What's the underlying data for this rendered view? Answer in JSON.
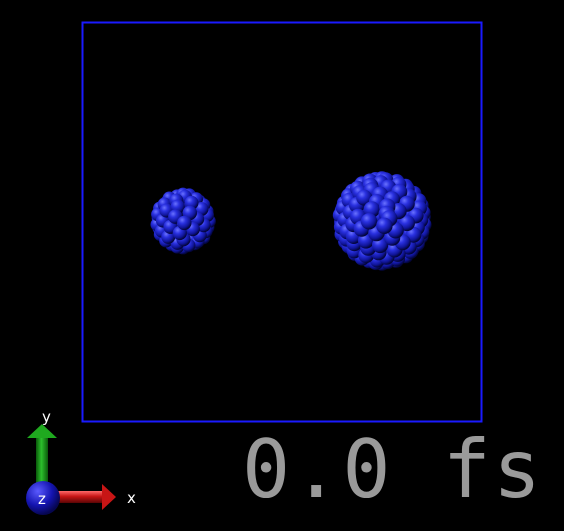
{
  "viewer": {
    "colors": {
      "background": "#000000",
      "box": "#1a1aff",
      "atom_light": "#4a52ff",
      "atom_mid": "#1f24c8",
      "atom_dark": "#050865",
      "axis_x": "#d01818",
      "axis_y": "#1fa91f",
      "axis_z": "#1616b8",
      "time_text": "#9a9a9a"
    },
    "axes": {
      "x_label": "x",
      "y_label": "y",
      "z_label": "z"
    },
    "time": {
      "label": "0.0 fs"
    }
  }
}
